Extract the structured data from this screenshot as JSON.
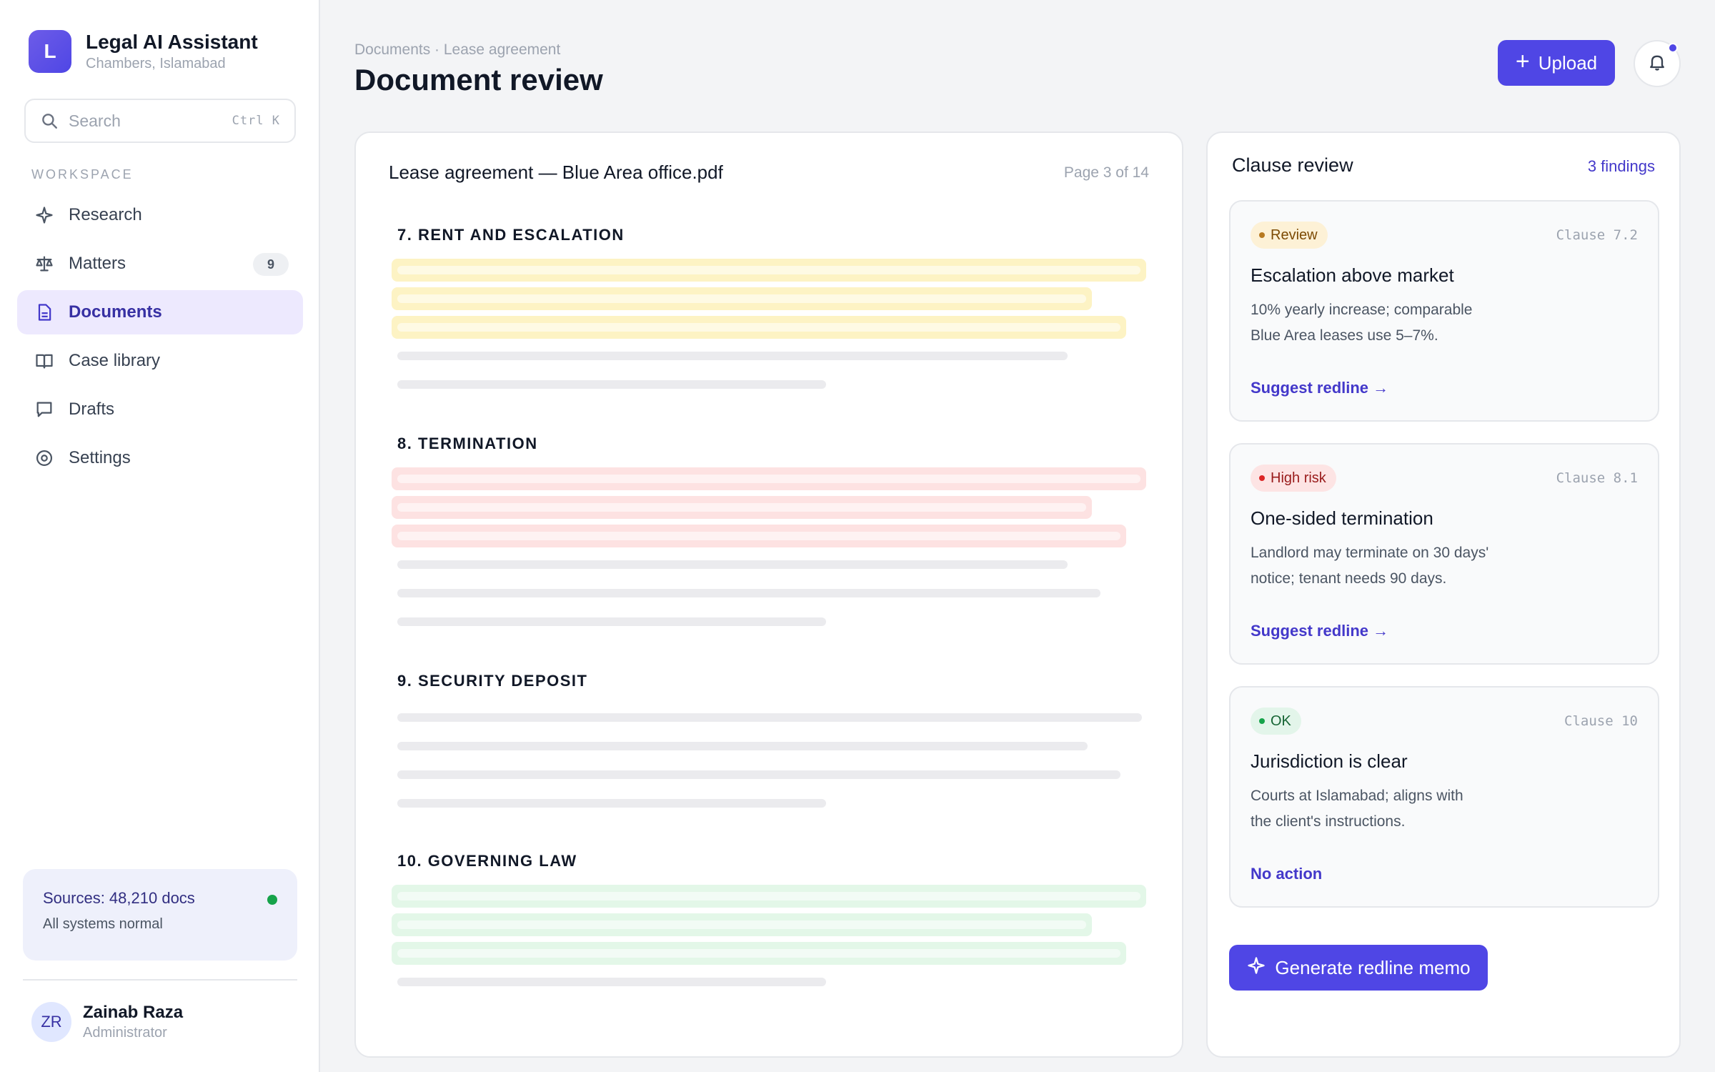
{
  "brand": {
    "logo_letter": "L",
    "title": "Legal AI Assistant",
    "subtitle": "Chambers, Islamabad"
  },
  "search": {
    "placeholder": "Search",
    "shortcut": "Ctrl K"
  },
  "sidebar": {
    "section_label": "WORKSPACE",
    "items": [
      {
        "label": "Research",
        "icon": "sparkle-icon"
      },
      {
        "label": "Matters",
        "icon": "scale-icon",
        "badge": "9"
      },
      {
        "label": "Documents",
        "icon": "document-icon",
        "active": true
      },
      {
        "label": "Case library",
        "icon": "book-icon"
      },
      {
        "label": "Drafts",
        "icon": "chat-icon"
      },
      {
        "label": "Settings",
        "icon": "gear-icon"
      }
    ]
  },
  "status": {
    "title": "Sources: 48,210 docs",
    "subtitle": "All systems normal",
    "color": "#16a34a"
  },
  "user": {
    "initials": "ZR",
    "name": "Zainab Raza",
    "role": "Administrator"
  },
  "header": {
    "breadcrumb": "Documents · Lease agreement",
    "title": "Document review",
    "upload_label": "Upload"
  },
  "document": {
    "filename": "Lease agreement — Blue Area office.pdf",
    "page_indicator": "Page 3 of 14",
    "sections": [
      {
        "heading": "7. RENT AND ESCALATION",
        "highlight": "yellow"
      },
      {
        "heading": "8. TERMINATION",
        "highlight": "red"
      },
      {
        "heading": "9. SECURITY DEPOSIT",
        "highlight": "none"
      },
      {
        "heading": "10. GOVERNING LAW",
        "highlight": "green"
      }
    ]
  },
  "clause_review": {
    "title": "Clause review",
    "count": "3 findings",
    "findings": [
      {
        "status": "Review",
        "clause": "Clause 7.2",
        "title": "Escalation above market",
        "desc_line1": "10% yearly increase; comparable",
        "desc_line2": "Blue Area leases use 5–7%.",
        "action": "Suggest redline →"
      },
      {
        "status": "High risk",
        "clause": "Clause 8.1",
        "title": "One-sided termination",
        "desc_line1": "Landlord may terminate on 30 days'",
        "desc_line2": "notice; tenant needs 90 days.",
        "action": "Suggest redline →"
      },
      {
        "status": "OK",
        "clause": "Clause 10",
        "title": "Jurisdiction is clear",
        "desc_line1": "Courts at Islamabad; aligns with",
        "desc_line2": "the client's instructions.",
        "action": "No action"
      }
    ],
    "memo_button": "Generate redline memo"
  },
  "colors": {
    "accent": "#4f46e5",
    "review": "#b7791f",
    "risk": "#dc2626",
    "ok": "#16a34a"
  }
}
